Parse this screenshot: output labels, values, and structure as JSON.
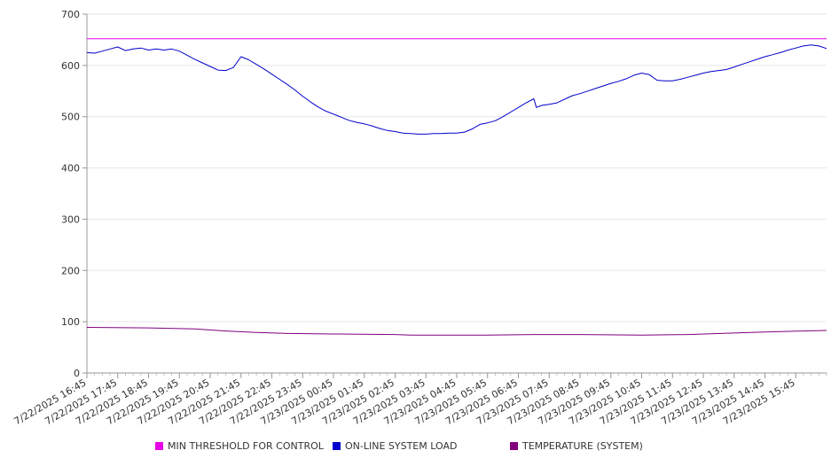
{
  "chart_data": {
    "type": "line",
    "ylim": [
      0,
      700
    ],
    "yticks": [
      0,
      100,
      200,
      300,
      400,
      500,
      600,
      700
    ],
    "x_tick_labels": [
      "7/22/2025 16:45",
      "7/22/2025 17:45",
      "7/22/2025 18:45",
      "7/22/2025 19:45",
      "7/22/2025 20:45",
      "7/22/2025 21:45",
      "7/22/2025 22:45",
      "7/22/2025 23:45",
      "7/23/2025 00:45",
      "7/23/2025 01:45",
      "7/23/2025 02:45",
      "7/23/2025 03:45",
      "7/23/2025 04:45",
      "7/23/2025 05:45",
      "7/23/2025 06:45",
      "7/23/2025 07:45",
      "7/23/2025 08:45",
      "7/23/2025 09:45",
      "7/23/2025 10:45",
      "7/23/2025 11:45",
      "7/23/2025 12:45",
      "7/23/2025 13:45",
      "7/23/2025 14:45",
      "7/23/2025 15:45"
    ],
    "x_range": [
      "7/22/2025 16:45",
      "7/23/2025 16:45"
    ],
    "grid": true,
    "legend_position": "bottom",
    "series": [
      {
        "name": "MIN THRESHOLD FOR CONTROL",
        "color": "#e600e6",
        "points": [
          [
            "7/22/2025 16:45",
            652
          ],
          [
            "7/23/2025 16:45",
            652
          ]
        ]
      },
      {
        "name": "ON-LINE SYSTEM LOAD",
        "color": "#0000cc",
        "points": [
          [
            "7/22/2025 16:45",
            625
          ],
          [
            "7/22/2025 17:00",
            624
          ],
          [
            "7/22/2025 17:15",
            628
          ],
          [
            "7/22/2025 17:30",
            632
          ],
          [
            "7/22/2025 17:45",
            636
          ],
          [
            "7/22/2025 18:00",
            629
          ],
          [
            "7/22/2025 18:15",
            632
          ],
          [
            "7/22/2025 18:30",
            634
          ],
          [
            "7/22/2025 18:45",
            630
          ],
          [
            "7/22/2025 19:00",
            632
          ],
          [
            "7/22/2025 19:15",
            630
          ],
          [
            "7/22/2025 19:30",
            632
          ],
          [
            "7/22/2025 19:45",
            628
          ],
          [
            "7/22/2025 20:00",
            620
          ],
          [
            "7/22/2025 20:15",
            612
          ],
          [
            "7/22/2025 20:30",
            605
          ],
          [
            "7/22/2025 20:45",
            598
          ],
          [
            "7/22/2025 21:00",
            591
          ],
          [
            "7/22/2025 21:15",
            590
          ],
          [
            "7/22/2025 21:30",
            596
          ],
          [
            "7/22/2025 21:45",
            617
          ],
          [
            "7/22/2025 22:00",
            611
          ],
          [
            "7/22/2025 22:15",
            602
          ],
          [
            "7/22/2025 22:30",
            593
          ],
          [
            "7/22/2025 22:45",
            583
          ],
          [
            "7/22/2025 23:00",
            573
          ],
          [
            "7/22/2025 23:15",
            563
          ],
          [
            "7/22/2025 23:30",
            552
          ],
          [
            "7/22/2025 23:45",
            540
          ],
          [
            "7/23/2025 00:00",
            529
          ],
          [
            "7/23/2025 00:15",
            519
          ],
          [
            "7/23/2025 00:30",
            511
          ],
          [
            "7/23/2025 00:45",
            505
          ],
          [
            "7/23/2025 01:00",
            499
          ],
          [
            "7/23/2025 01:15",
            493
          ],
          [
            "7/23/2025 01:30",
            489
          ],
          [
            "7/23/2025 01:45",
            486
          ],
          [
            "7/23/2025 02:00",
            482
          ],
          [
            "7/23/2025 02:15",
            477
          ],
          [
            "7/23/2025 02:30",
            473
          ],
          [
            "7/23/2025 02:45",
            471
          ],
          [
            "7/23/2025 03:00",
            468
          ],
          [
            "7/23/2025 03:15",
            467
          ],
          [
            "7/23/2025 03:30",
            466
          ],
          [
            "7/23/2025 03:45",
            466
          ],
          [
            "7/23/2025 04:00",
            467
          ],
          [
            "7/23/2025 04:15",
            467
          ],
          [
            "7/23/2025 04:30",
            468
          ],
          [
            "7/23/2025 04:45",
            468
          ],
          [
            "7/23/2025 05:00",
            470
          ],
          [
            "7/23/2025 05:15",
            476
          ],
          [
            "7/23/2025 05:30",
            485
          ],
          [
            "7/23/2025 05:45",
            488
          ],
          [
            "7/23/2025 06:00",
            492
          ],
          [
            "7/23/2025 06:15",
            500
          ],
          [
            "7/23/2025 06:30",
            509
          ],
          [
            "7/23/2025 06:45",
            518
          ],
          [
            "7/23/2025 07:00",
            527
          ],
          [
            "7/23/2025 07:15",
            535
          ],
          [
            "7/23/2025 07:20",
            518
          ],
          [
            "7/23/2025 07:30",
            522
          ],
          [
            "7/23/2025 07:45",
            524
          ],
          [
            "7/23/2025 08:00",
            527
          ],
          [
            "7/23/2025 08:15",
            534
          ],
          [
            "7/23/2025 08:30",
            541
          ],
          [
            "7/23/2025 08:45",
            545
          ],
          [
            "7/23/2025 09:00",
            550
          ],
          [
            "7/23/2025 09:15",
            555
          ],
          [
            "7/23/2025 09:30",
            560
          ],
          [
            "7/23/2025 09:45",
            565
          ],
          [
            "7/23/2025 10:00",
            569
          ],
          [
            "7/23/2025 10:15",
            574
          ],
          [
            "7/23/2025 10:30",
            581
          ],
          [
            "7/23/2025 10:45",
            585
          ],
          [
            "7/23/2025 11:00",
            582
          ],
          [
            "7/23/2025 11:15",
            571
          ],
          [
            "7/23/2025 11:30",
            570
          ],
          [
            "7/23/2025 11:45",
            570
          ],
          [
            "7/23/2025 12:00",
            573
          ],
          [
            "7/23/2025 12:15",
            577
          ],
          [
            "7/23/2025 12:30",
            581
          ],
          [
            "7/23/2025 12:45",
            585
          ],
          [
            "7/23/2025 13:00",
            588
          ],
          [
            "7/23/2025 13:15",
            590
          ],
          [
            "7/23/2025 13:30",
            592
          ],
          [
            "7/23/2025 13:45",
            597
          ],
          [
            "7/23/2025 14:00",
            602
          ],
          [
            "7/23/2025 14:15",
            607
          ],
          [
            "7/23/2025 14:30",
            612
          ],
          [
            "7/23/2025 14:45",
            617
          ],
          [
            "7/23/2025 15:00",
            621
          ],
          [
            "7/23/2025 15:15",
            625
          ],
          [
            "7/23/2025 15:30",
            630
          ],
          [
            "7/23/2025 15:45",
            634
          ],
          [
            "7/23/2025 16:00",
            638
          ],
          [
            "7/23/2025 16:15",
            640
          ],
          [
            "7/23/2025 16:30",
            638
          ],
          [
            "7/23/2025 16:45",
            633
          ]
        ]
      },
      {
        "name": "TEMPERATURE (SYSTEM)",
        "color": "#800080",
        "points": [
          [
            "7/22/2025 16:45",
            89
          ],
          [
            "7/22/2025 18:45",
            88
          ],
          [
            "7/22/2025 20:15",
            86
          ],
          [
            "7/22/2025 21:15",
            82
          ],
          [
            "7/22/2025 22:15",
            79
          ],
          [
            "7/22/2025 23:15",
            77
          ],
          [
            "7/23/2025 00:45",
            76
          ],
          [
            "7/23/2025 02:45",
            75
          ],
          [
            "7/23/2025 03:15",
            74
          ],
          [
            "7/23/2025 05:45",
            74
          ],
          [
            "7/23/2025 07:15",
            75
          ],
          [
            "7/23/2025 08:45",
            75
          ],
          [
            "7/23/2025 10:45",
            74
          ],
          [
            "7/23/2025 12:15",
            75
          ],
          [
            "7/23/2025 13:45",
            78
          ],
          [
            "7/23/2025 14:45",
            80
          ],
          [
            "7/23/2025 16:45",
            83
          ]
        ]
      }
    ]
  }
}
